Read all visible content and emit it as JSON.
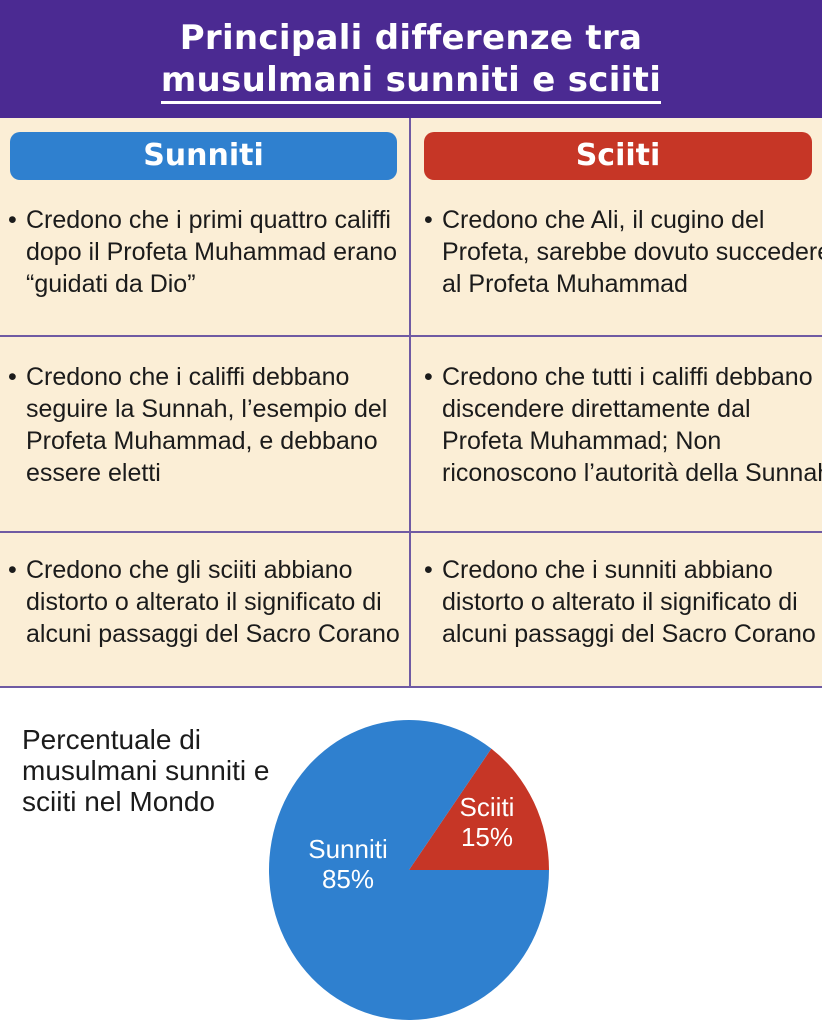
{
  "header": {
    "title_line1": "Principali differenze tra",
    "title_line2": "musulmani sunniti e sciiti"
  },
  "columns": {
    "sunniti": "Sunniti",
    "sciiti": "Sciiti"
  },
  "rows": [
    {
      "sunniti": "Credono che i primi quattro califfi dopo il Profeta Muhammad erano “guidati da Dio”",
      "sciiti": "Credono che Ali, il cugino del Profeta, sarebbe dovuto succedere al Profeta Muhammad"
    },
    {
      "sunniti": "Credono che i califfi debbano seguire la Sunnah, l’esempio del Profeta Muhammad, e debbano essere eletti",
      "sciiti": "Credono che tutti i califfi debbano discendere direttamente dal Profeta Muhammad; Non riconoscono l’autorità della Sunnah"
    },
    {
      "sunniti": "Credono che gli sciiti abbiano distorto o alterato il significato di alcuni passaggi del Sacro Corano",
      "sciiti": "Credono che i sunniti abbiano distorto o alterato il significato di alcuni passaggi del Sacro Corano"
    }
  ],
  "colors": {
    "header_bg": "#4b2a92",
    "sunniti": "#2f80cf",
    "sciiti": "#c63626",
    "table_bg": "#fbeed6"
  },
  "chart_data": {
    "type": "pie",
    "title": "Percentuale di musulmani sunniti e sciiti nel Mondo",
    "series": [
      {
        "name": "Sunniti",
        "value": 85,
        "label": "85%",
        "color": "#2f80cf"
      },
      {
        "name": "Sciiti",
        "value": 15,
        "label": "15%",
        "color": "#c63626"
      }
    ]
  }
}
